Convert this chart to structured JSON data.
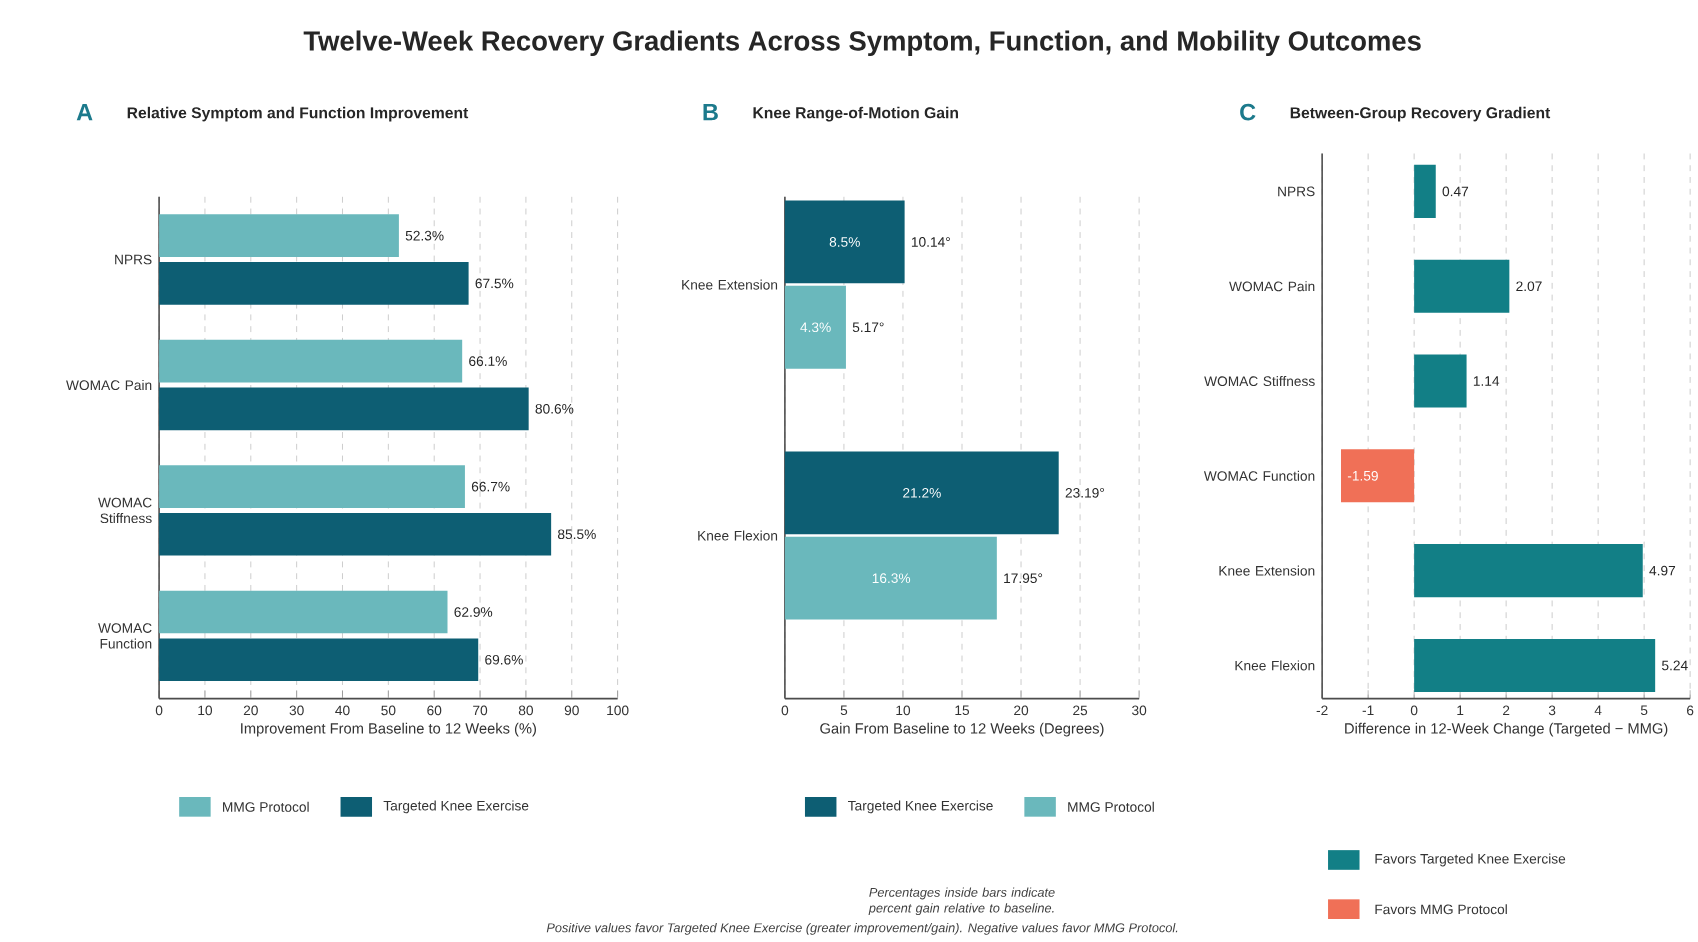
{
  "chart_data": [
    {
      "type": "other",
      "title": "Twelve-Week Recovery Gradients Across Symptom, Function, and Mobility Outcomes",
      "annotations": [
        "Positive values favor Targeted Knee Exercise (greater improvement/gain). Negative values favor MMG Protocol."
      ]
    },
    {
      "type": "bar",
      "orientation": "horizontal",
      "title": "Relative Symptom and Function Improvement",
      "annotations": [
        "A"
      ],
      "xlabel": "Improvement From Baseline to 12 Weeks (%)",
      "categories": [
        "NPRS",
        "WOMAC Pain",
        "WOMAC Stiffness",
        "WOMAC Function"
      ],
      "series": [
        {
          "name": "MMG Protocol",
          "color": "#6ab8bc",
          "values": [
            52.3,
            66.1,
            66.7,
            62.9
          ],
          "value_labels": [
            "52.3%",
            "66.1%",
            "66.7%",
            "62.9%"
          ]
        },
        {
          "name": "Targeted Knee Exercise",
          "color": "#0d5e73",
          "values": [
            67.5,
            80.6,
            85.5,
            69.6
          ],
          "value_labels": [
            "67.5%",
            "80.6%",
            "85.5%",
            "69.6%"
          ]
        }
      ],
      "xlim": [
        0,
        100
      ],
      "xticks": [
        0,
        10,
        20,
        30,
        40,
        50,
        60,
        70,
        80,
        90,
        100
      ],
      "grid": "x",
      "legend": "bottom"
    },
    {
      "type": "bar",
      "orientation": "horizontal",
      "title": "Knee Range-of-Motion Gain",
      "xlabel": "Gain From Baseline to 12 Weeks (Degrees)",
      "annotations": [
        "B",
        "Percentages inside bars indicate percent gain relative to baseline.",
        {
          "text": "8.5%",
          "x": 5.07,
          "y": "Knee Extension"
        },
        {
          "text": "4.3%",
          "x": 2.6,
          "y": "Knee Extension"
        },
        {
          "text": "21.2%",
          "x": 11.6,
          "y": "Knee Flexion"
        },
        {
          "text": "16.3%",
          "x": 9,
          "y": "Knee Flexion"
        }
      ],
      "categories": [
        "Knee Extension",
        "Knee Flexion"
      ],
      "series": [
        {
          "name": "Targeted Knee Exercise",
          "color": "#0d5e73",
          "values": [
            10.14,
            23.19
          ],
          "value_labels": [
            "10.14°",
            "23.19°"
          ]
        },
        {
          "name": "MMG Protocol",
          "color": "#6ab8bc",
          "values": [
            5.17,
            17.95
          ],
          "value_labels": [
            "5.17°",
            "17.95°"
          ]
        }
      ],
      "xlim": [
        0,
        30
      ],
      "xticks": [
        0,
        5,
        10,
        15,
        20,
        25,
        30
      ],
      "grid": "x",
      "legend": "bottom"
    },
    {
      "type": "bar",
      "orientation": "horizontal",
      "stacked": true,
      "title": "Between-Group Recovery Gradient",
      "annotations": [
        "C"
      ],
      "xlabel": "Difference in 12-Week Change (Targeted − MMG)",
      "categories": [
        "NPRS",
        "WOMAC Pain",
        "WOMAC Stiffness",
        "WOMAC Function",
        "Knee Extension",
        "Knee Flexion"
      ],
      "series": [
        {
          "name": "Favors Targeted Knee Exercise",
          "color": "#127f86",
          "values": [
            0.47,
            2.07,
            1.14,
            null,
            4.97,
            5.24
          ]
        },
        {
          "name": "Favors MMG Protocol",
          "color": "#f07057",
          "values": [
            null,
            null,
            null,
            -1.59,
            null,
            null
          ]
        }
      ],
      "data_labels": true,
      "xlim": [
        -2,
        6
      ],
      "xticks": [
        -2,
        -1,
        0,
        1,
        2,
        3,
        4,
        5,
        6
      ],
      "grid": "x",
      "legend": "bottom"
    }
  ]
}
